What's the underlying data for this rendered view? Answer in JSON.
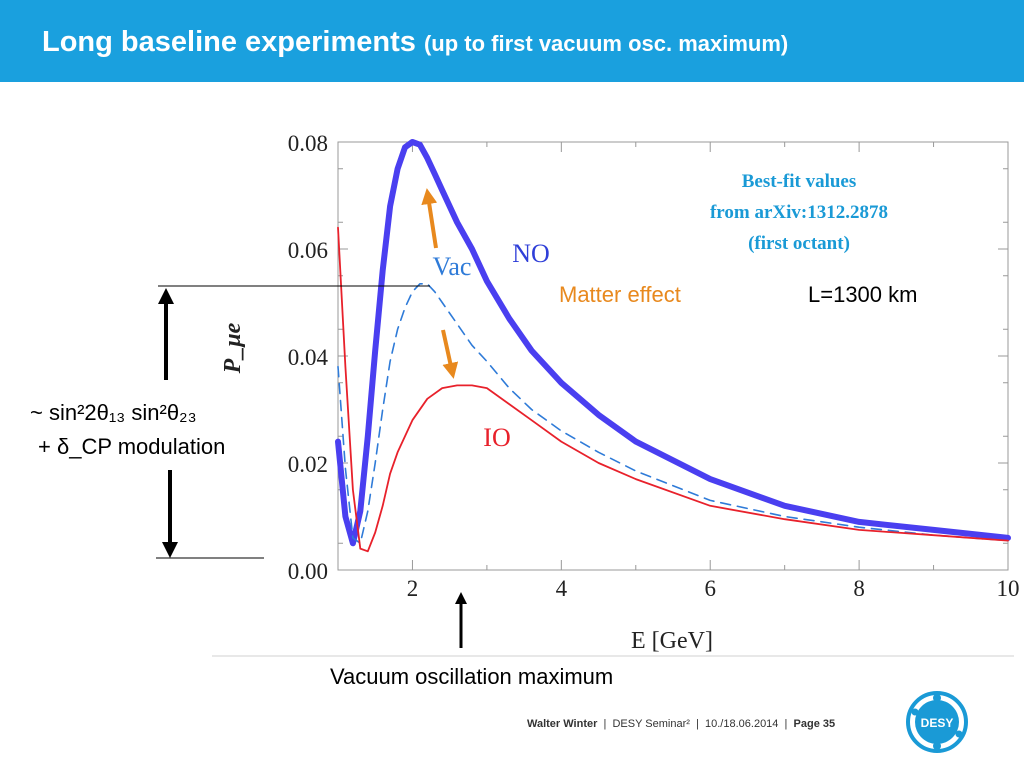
{
  "header": {
    "title_main": "Long baseline experiments",
    "title_sub": "(up to first vacuum osc. maximum)",
    "color": "#1aa0de"
  },
  "annotations": {
    "best_fit_line1": "Best-fit values",
    "best_fit_line2": "from arXiv:1312.2878",
    "best_fit_line3": "(first octant)",
    "matter_effect": "Matter effect",
    "baseline": "L=1300 km",
    "amplitude_line1": "~ sin²2θ₁₃ sin²θ₂₃",
    "amplitude_line2": "+ δ_CP modulation",
    "vacuum_max": "Vacuum oscillation maximum"
  },
  "footer": {
    "author": "Walter Winter",
    "event": "DESY Seminar²",
    "date": "10./18.06.2014",
    "page": "Page 35",
    "logo_text": "DESY"
  },
  "chart_data": {
    "type": "line",
    "xlabel": "E [GeV]",
    "ylabel": "P_μe",
    "xlim": [
      1,
      10
    ],
    "ylim": [
      0,
      0.08
    ],
    "xticks": [
      2,
      4,
      6,
      8,
      10
    ],
    "yticks": [
      0.0,
      0.02,
      0.04,
      0.06,
      0.08
    ],
    "ytick_labels": [
      "0.00",
      "0.02",
      "0.04",
      "0.06",
      "0.08"
    ],
    "series": [
      {
        "name": "NO",
        "color": "#4a3ff0",
        "style": "solid-thick",
        "x": [
          1.0,
          1.1,
          1.2,
          1.3,
          1.4,
          1.5,
          1.6,
          1.7,
          1.8,
          1.9,
          2.0,
          2.1,
          2.2,
          2.3,
          2.4,
          2.6,
          2.8,
          3.0,
          3.3,
          3.6,
          4.0,
          4.5,
          5.0,
          6.0,
          7.0,
          8.0,
          9.0,
          10.0
        ],
        "y": [
          0.024,
          0.01,
          0.005,
          0.011,
          0.025,
          0.041,
          0.056,
          0.068,
          0.075,
          0.079,
          0.08,
          0.0795,
          0.077,
          0.074,
          0.071,
          0.065,
          0.06,
          0.054,
          0.047,
          0.041,
          0.035,
          0.029,
          0.024,
          0.017,
          0.012,
          0.009,
          0.0075,
          0.006
        ]
      },
      {
        "name": "Vac",
        "color": "#2f7bd8",
        "style": "dashed",
        "x": [
          1.0,
          1.1,
          1.2,
          1.3,
          1.4,
          1.5,
          1.6,
          1.7,
          1.8,
          1.9,
          2.0,
          2.1,
          2.2,
          2.3,
          2.4,
          2.6,
          2.8,
          3.0,
          3.3,
          3.6,
          4.0,
          4.5,
          5.0,
          6.0,
          7.0,
          8.0,
          9.0,
          10.0
        ],
        "y": [
          0.038,
          0.019,
          0.006,
          0.005,
          0.011,
          0.02,
          0.03,
          0.039,
          0.045,
          0.049,
          0.052,
          0.0535,
          0.0535,
          0.052,
          0.05,
          0.046,
          0.042,
          0.039,
          0.034,
          0.03,
          0.026,
          0.022,
          0.0185,
          0.013,
          0.01,
          0.008,
          0.0065,
          0.0055
        ]
      },
      {
        "name": "IO",
        "color": "#e8212b",
        "style": "solid",
        "x": [
          1.0,
          1.1,
          1.2,
          1.3,
          1.4,
          1.5,
          1.6,
          1.7,
          1.8,
          1.9,
          2.0,
          2.2,
          2.4,
          2.6,
          2.8,
          3.0,
          3.3,
          3.6,
          4.0,
          4.5,
          5.0,
          6.0,
          7.0,
          8.0,
          9.0,
          10.0
        ],
        "y": [
          0.064,
          0.038,
          0.015,
          0.004,
          0.0035,
          0.007,
          0.012,
          0.018,
          0.022,
          0.025,
          0.028,
          0.032,
          0.034,
          0.0345,
          0.0345,
          0.034,
          0.031,
          0.028,
          0.024,
          0.02,
          0.017,
          0.012,
          0.0095,
          0.0075,
          0.0065,
          0.0055
        ]
      }
    ]
  }
}
